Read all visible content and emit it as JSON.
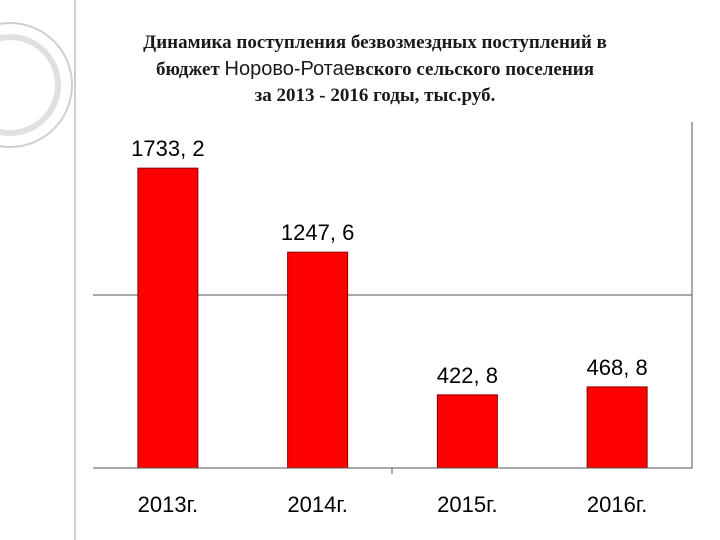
{
  "slide": {
    "accent_color": "#c8c8c8"
  },
  "chart_data": {
    "type": "bar",
    "title_line1": "Динамика поступления безвозмездных поступлений в",
    "title_line2_prefix": "бюджет ",
    "title_line2_name": "Норово-Ротае",
    "title_line2_suffix": "вского сельского поселения",
    "title_line3": "за 2013 - 2016 годы, тыс.руб.",
    "categories": [
      "2013г.",
      "2014г.",
      "2015г.",
      "2016г."
    ],
    "values": [
      1733.2,
      1247.6,
      422.8,
      468.8
    ],
    "value_labels": [
      "1733, 2",
      "1247, 6",
      "422, 8",
      "468, 8"
    ],
    "ylim": [
      0,
      2000
    ],
    "grid": true,
    "bar_color": "#ff0000",
    "bar_edge_color": "#8b0000"
  }
}
